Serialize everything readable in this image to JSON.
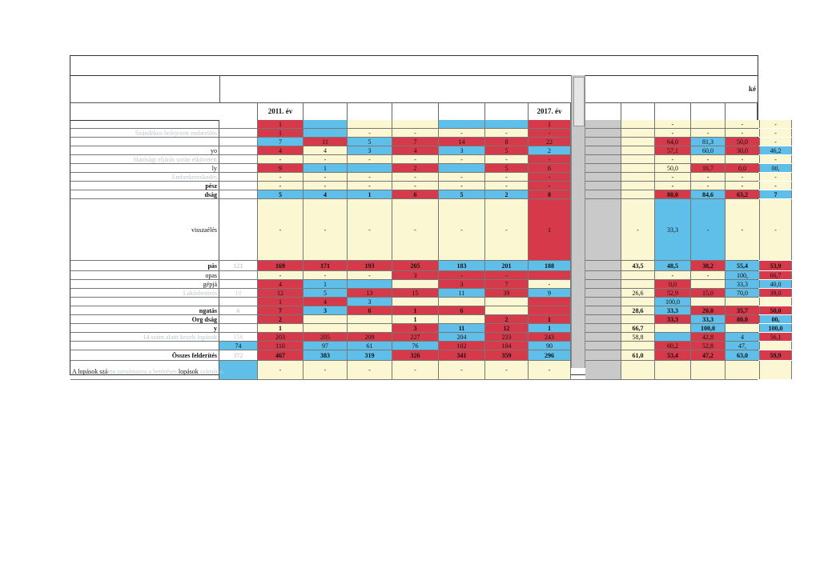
{
  "header": {
    "right_label": "ké",
    "year_cols": [
      "",
      "2011. év",
      "",
      "",
      "",
      "",
      "",
      "2017. év",
      "",
      "",
      "",
      "",
      "",
      "",
      ""
    ]
  },
  "rows": [
    {
      "label": "",
      "bold": false,
      "faint": true,
      "h": 11,
      "cells": [
        [
          "",
          "w"
        ],
        [
          "1",
          "r"
        ],
        [
          "",
          "b"
        ],
        [
          "",
          "y"
        ],
        [
          "",
          "y"
        ],
        [
          "",
          "b"
        ],
        [
          "",
          "b"
        ],
        [
          "1",
          "r"
        ],
        [
          "",
          "g"
        ],
        [
          "",
          "y"
        ],
        [
          "-",
          "y"
        ],
        [
          "",
          "y"
        ],
        [
          "-",
          "y"
        ],
        [
          "-",
          "y"
        ]
      ]
    },
    {
      "label": "Szándékos befejezett emberölés",
      "bold": false,
      "faint": true,
      "h": 11,
      "cells": [
        [
          "",
          "w"
        ],
        [
          "1",
          "r"
        ],
        [
          "",
          "b"
        ],
        [
          "-",
          "y"
        ],
        [
          "-",
          "y"
        ],
        [
          "-",
          "y"
        ],
        [
          "-",
          "y"
        ],
        [
          "-",
          "r"
        ],
        [
          "",
          "g"
        ],
        [
          "",
          "y"
        ],
        [
          "-",
          "y"
        ],
        [
          "-",
          "y"
        ],
        [
          "-",
          "y"
        ],
        [
          "-",
          "y"
        ]
      ]
    },
    {
      "label": "",
      "bold": false,
      "faint": true,
      "h": 11,
      "cells": [
        [
          "",
          "w"
        ],
        [
          "7",
          "b"
        ],
        [
          "11",
          "r"
        ],
        [
          "5",
          "b"
        ],
        [
          "7",
          "r"
        ],
        [
          "14",
          "r"
        ],
        [
          "8",
          "r"
        ],
        [
          "22",
          "r"
        ],
        [
          "",
          "g"
        ],
        [
          "",
          "y"
        ],
        [
          "64,0",
          "r"
        ],
        [
          "81,3",
          "b"
        ],
        [
          "50,0",
          "r"
        ],
        [
          "-",
          "y"
        ]
      ]
    },
    {
      "label": "yo",
      "bold": false,
      "faint": false,
      "h": 11,
      "cells": [
        [
          "",
          "w"
        ],
        [
          "4",
          "r"
        ],
        [
          "4",
          "y"
        ],
        [
          "3",
          "b"
        ],
        [
          "4",
          "r"
        ],
        [
          "3",
          "b"
        ],
        [
          "5",
          "r"
        ],
        [
          "2",
          "b"
        ],
        [
          "",
          "g"
        ],
        [
          "",
          "y"
        ],
        [
          "57,1",
          "r"
        ],
        [
          "60,0",
          "b"
        ],
        [
          "30,0",
          "r"
        ],
        [
          "46,2",
          "b"
        ]
      ]
    },
    {
      "label": "Hatósági eljárás során elkövetett",
      "bold": false,
      "faint": true,
      "h": 11,
      "cells": [
        [
          "",
          "w"
        ],
        [
          "-",
          "y"
        ],
        [
          "-",
          "y"
        ],
        [
          "-",
          "y"
        ],
        [
          "-",
          "y"
        ],
        [
          "-",
          "y"
        ],
        [
          "-",
          "y"
        ],
        [
          "-",
          "r"
        ],
        [
          "",
          "g"
        ],
        [
          "",
          "y"
        ],
        [
          "-",
          "y"
        ],
        [
          "-",
          "y"
        ],
        [
          "-",
          "y"
        ],
        [
          "-",
          "y"
        ]
      ]
    },
    {
      "label": "ly",
      "bold": false,
      "faint": false,
      "h": 11,
      "cells": [
        [
          "",
          "w"
        ],
        [
          "9",
          "r"
        ],
        [
          "1",
          "b"
        ],
        [
          "",
          "b"
        ],
        [
          "2",
          "r"
        ],
        [
          "",
          "b"
        ],
        [
          "5",
          "r"
        ],
        [
          "6",
          "r"
        ],
        [
          "",
          "g"
        ],
        [
          "",
          "y"
        ],
        [
          "50,0",
          "y"
        ],
        [
          "16,7",
          "r"
        ],
        [
          "0,0",
          "r"
        ],
        [
          "00,",
          "b"
        ]
      ]
    },
    {
      "label": "Emberkereskedés",
      "bold": false,
      "faint": true,
      "h": 11,
      "cells": [
        [
          "",
          "w"
        ],
        [
          "-",
          "y"
        ],
        [
          "-",
          "y"
        ],
        [
          "-",
          "y"
        ],
        [
          "-",
          "y"
        ],
        [
          "-",
          "y"
        ],
        [
          "-",
          "y"
        ],
        [
          "-",
          "r"
        ],
        [
          "",
          "g"
        ],
        [
          "",
          "y"
        ],
        [
          "-",
          "y"
        ],
        [
          "-",
          "y"
        ],
        [
          "-",
          "y"
        ],
        [
          "-",
          "y"
        ]
      ]
    },
    {
      "label": "pész",
      "bold": true,
      "faint": false,
      "h": 11,
      "cells": [
        [
          "",
          "w"
        ],
        [
          "-",
          "y"
        ],
        [
          "-",
          "y"
        ],
        [
          "-",
          "y"
        ],
        [
          "-",
          "y"
        ],
        [
          "-",
          "y"
        ],
        [
          "-",
          "y"
        ],
        [
          "-",
          "r"
        ],
        [
          "",
          "g"
        ],
        [
          "",
          "y"
        ],
        [
          "-",
          "y"
        ],
        [
          "-",
          "y"
        ],
        [
          "-",
          "y"
        ],
        [
          "-",
          "y"
        ]
      ]
    },
    {
      "label": "dság",
      "bold": true,
      "faint": false,
      "h": 11,
      "cells": [
        [
          "",
          "w"
        ],
        [
          "5",
          "b"
        ],
        [
          "4",
          "b"
        ],
        [
          "1",
          "b"
        ],
        [
          "6",
          "r"
        ],
        [
          "5",
          "b"
        ],
        [
          "2",
          "b"
        ],
        [
          "8",
          "r"
        ],
        [
          "",
          "g"
        ],
        [
          "",
          "y"
        ],
        [
          "80,0",
          "r"
        ],
        [
          "84,6",
          "b"
        ],
        [
          "63,2",
          "r"
        ],
        [
          "7",
          "b"
        ]
      ]
    },
    {
      "label": "visszaélés",
      "bold": false,
      "faint": false,
      "h": 77,
      "cells": [
        [
          "",
          "w"
        ],
        [
          "-",
          "y"
        ],
        [
          "-",
          "y"
        ],
        [
          "-",
          "y"
        ],
        [
          "-",
          "y"
        ],
        [
          "-",
          "y"
        ],
        [
          "-",
          "y"
        ],
        [
          "1",
          "r"
        ],
        [
          "",
          "g"
        ],
        [
          "-",
          "y"
        ],
        [
          "33,3",
          "b"
        ],
        [
          "-",
          "b"
        ],
        [
          "-",
          "y"
        ],
        [
          "-",
          "y"
        ]
      ]
    },
    {
      "label": "pás",
      "bold": true,
      "faint": false,
      "h": 13,
      "cells": [
        [
          "121",
          "w"
        ],
        [
          "169",
          "r"
        ],
        [
          "171",
          "r"
        ],
        [
          "193",
          "r"
        ],
        [
          "205",
          "r"
        ],
        [
          "183",
          "b"
        ],
        [
          "201",
          "b"
        ],
        [
          "188",
          "b"
        ],
        [
          "",
          "g"
        ],
        [
          "43,5",
          "y"
        ],
        [
          "48,5",
          "b"
        ],
        [
          "38,2",
          "r"
        ],
        [
          "55,4",
          "b"
        ],
        [
          "53,9",
          "r"
        ]
      ]
    },
    {
      "label": "opas",
      "bold": false,
      "faint": false,
      "h": 11,
      "cells": [
        [
          "",
          "w"
        ],
        [
          "-",
          "y"
        ],
        [
          "-",
          "y"
        ],
        [
          "-",
          "y"
        ],
        [
          "3",
          "r"
        ],
        [
          "-",
          "r"
        ],
        [
          "-",
          "r"
        ],
        [
          "",
          "r"
        ],
        [
          "",
          "g"
        ],
        [
          "",
          "y"
        ],
        [
          "-",
          "y"
        ],
        [
          "-",
          "y"
        ],
        [
          "100,",
          "b"
        ],
        [
          "66,7",
          "r"
        ]
      ]
    },
    {
      "label": "gépjá",
      "bold": false,
      "faint": false,
      "h": 11,
      "cells": [
        [
          "",
          "w"
        ],
        [
          "4",
          "r"
        ],
        [
          "1",
          "b"
        ],
        [
          "",
          "b"
        ],
        [
          "",
          "y"
        ],
        [
          "3",
          "r"
        ],
        [
          "7",
          "r"
        ],
        [
          "-",
          "y"
        ],
        [
          "",
          "g"
        ],
        [
          "",
          "y"
        ],
        [
          "0,0",
          "r"
        ],
        [
          "",
          "y"
        ],
        [
          "33,3",
          "b"
        ],
        [
          "40,0",
          "b"
        ]
      ]
    },
    {
      "label": "Lakásbetörés",
      "bold": false,
      "faint": true,
      "h": 11,
      "cells": [
        [
          "10",
          "w"
        ],
        [
          "12",
          "r"
        ],
        [
          "5",
          "b"
        ],
        [
          "13",
          "r"
        ],
        [
          "15",
          "r"
        ],
        [
          "11",
          "b"
        ],
        [
          "39",
          "r"
        ],
        [
          "9",
          "b"
        ],
        [
          "",
          "g"
        ],
        [
          "26,6",
          "y"
        ],
        [
          "52,9",
          "r"
        ],
        [
          "15,0",
          "r"
        ],
        [
          "70,0",
          "b"
        ],
        [
          "39,0",
          "r"
        ]
      ]
    },
    {
      "label": "",
      "bold": false,
      "faint": false,
      "h": 11,
      "cells": [
        [
          "",
          "w"
        ],
        [
          "1",
          "r"
        ],
        [
          "4",
          "r"
        ],
        [
          "3",
          "b"
        ],
        [
          "",
          "y"
        ],
        [
          "",
          "y"
        ],
        [
          "",
          "y"
        ],
        [
          "",
          "r"
        ],
        [
          "",
          "g"
        ],
        [
          "",
          "y"
        ],
        [
          "100,0",
          "b"
        ],
        [
          "",
          "y"
        ],
        [
          "",
          "y"
        ],
        [
          "",
          "y"
        ]
      ]
    },
    {
      "label": "ngatás",
      "bold": true,
      "faint": false,
      "h": 11,
      "cells": [
        [
          "6",
          "w"
        ],
        [
          "7",
          "r"
        ],
        [
          "3",
          "b"
        ],
        [
          "6",
          "r"
        ],
        [
          "1",
          "r"
        ],
        [
          "6",
          "r"
        ],
        [
          "",
          "y"
        ],
        [
          "",
          "r"
        ],
        [
          "",
          "g"
        ],
        [
          "28,6",
          "y"
        ],
        [
          "33,3",
          "b"
        ],
        [
          "20,0",
          "r"
        ],
        [
          "35,7",
          "r"
        ],
        [
          "50,0",
          "r"
        ]
      ]
    },
    {
      "label": "Org dság",
      "bold": true,
      "faint": false,
      "h": 11,
      "cells": [
        [
          "",
          "w"
        ],
        [
          "2",
          "r"
        ],
        [
          "",
          "y"
        ],
        [
          "",
          "y"
        ],
        [
          "1",
          "y"
        ],
        [
          "",
          "y"
        ],
        [
          "2",
          "r"
        ],
        [
          "1",
          "r"
        ],
        [
          "",
          "g"
        ],
        [
          "",
          "y"
        ],
        [
          "33,3",
          "r"
        ],
        [
          "33,3",
          "b"
        ],
        [
          "80,0",
          "r"
        ],
        [
          "00,",
          "b"
        ]
      ]
    },
    {
      "label": "y",
      "bold": true,
      "faint": false,
      "h": 11,
      "cells": [
        [
          "",
          "w"
        ],
        [
          "1",
          "y"
        ],
        [
          "",
          "y"
        ],
        [
          "",
          "y"
        ],
        [
          "3",
          "r"
        ],
        [
          "11",
          "b"
        ],
        [
          "12",
          "r"
        ],
        [
          "1",
          "b"
        ],
        [
          "",
          "g"
        ],
        [
          "66,7",
          "y"
        ],
        [
          "",
          "y"
        ],
        [
          "100,0",
          "b"
        ],
        [
          "",
          "y"
        ],
        [
          "100,0",
          "b"
        ]
      ]
    },
    {
      "label": "14 szám alatti kezelt lopások",
      "bold": false,
      "faint": true,
      "h": 11,
      "cells": [
        [
          "156",
          "w"
        ],
        [
          "203",
          "r"
        ],
        [
          "205",
          "r"
        ],
        [
          "209",
          "r"
        ],
        [
          "227",
          "r"
        ],
        [
          "204",
          "b"
        ],
        [
          "233",
          "r"
        ],
        [
          "243",
          "r"
        ],
        [
          "",
          "g"
        ],
        [
          "58,8",
          "y"
        ],
        [
          "",
          "b"
        ],
        [
          "42,8",
          "r"
        ],
        [
          "4",
          "b"
        ],
        [
          "56,1",
          "r"
        ]
      ]
    },
    {
      "label": "",
      "bold": false,
      "faint": false,
      "h": 11,
      "cells": [
        [
          "74",
          "b"
        ],
        [
          "110",
          "r"
        ],
        [
          "97",
          "b"
        ],
        [
          "61",
          "b"
        ],
        [
          "76",
          "b"
        ],
        [
          "102",
          "r"
        ],
        [
          "104",
          "r"
        ],
        [
          "90",
          "b"
        ],
        [
          "",
          "g"
        ],
        [
          "",
          "y"
        ],
        [
          "60,2",
          "r"
        ],
        [
          "52,8",
          "r"
        ],
        [
          "47,",
          "b"
        ],
        [
          "",
          "y"
        ]
      ]
    },
    {
      "label": "Összes felderítés",
      "bold": true,
      "faint": false,
      "h": 13,
      "cells": [
        [
          "372",
          "w"
        ],
        [
          "467",
          "r"
        ],
        [
          "383",
          "b"
        ],
        [
          "319",
          "b"
        ],
        [
          "326",
          "r"
        ],
        [
          "341",
          "r"
        ],
        [
          "359",
          "r"
        ],
        [
          "296",
          "b"
        ],
        [
          "",
          "g"
        ],
        [
          "61,0",
          "y"
        ],
        [
          "53,4",
          "r"
        ],
        [
          "47,2",
          "r"
        ],
        [
          "63,0",
          "b"
        ],
        [
          "59,9",
          "r"
        ]
      ]
    },
    {
      "label": "",
      "bold": false,
      "faint": false,
      "h": 24,
      "cells": [
        [
          "",
          "b"
        ],
        [
          "-",
          "y"
        ],
        [
          "-",
          "y"
        ],
        [
          "-",
          "y"
        ],
        [
          "-",
          "y"
        ],
        [
          "-",
          "y"
        ],
        [
          "-",
          "y"
        ],
        [
          "-",
          "y"
        ],
        [
          "",
          "g"
        ],
        [
          "",
          "y"
        ],
        [
          "",
          "y"
        ],
        [
          "",
          "y"
        ],
        [
          "",
          "y"
        ],
        [
          "",
          "y"
        ]
      ]
    }
  ],
  "footnote": {
    "prefix": "A lopások szá",
    "faint": "mu tartalmazza a betöréses",
    "mid": " lopások",
    "tail": " számát is"
  }
}
